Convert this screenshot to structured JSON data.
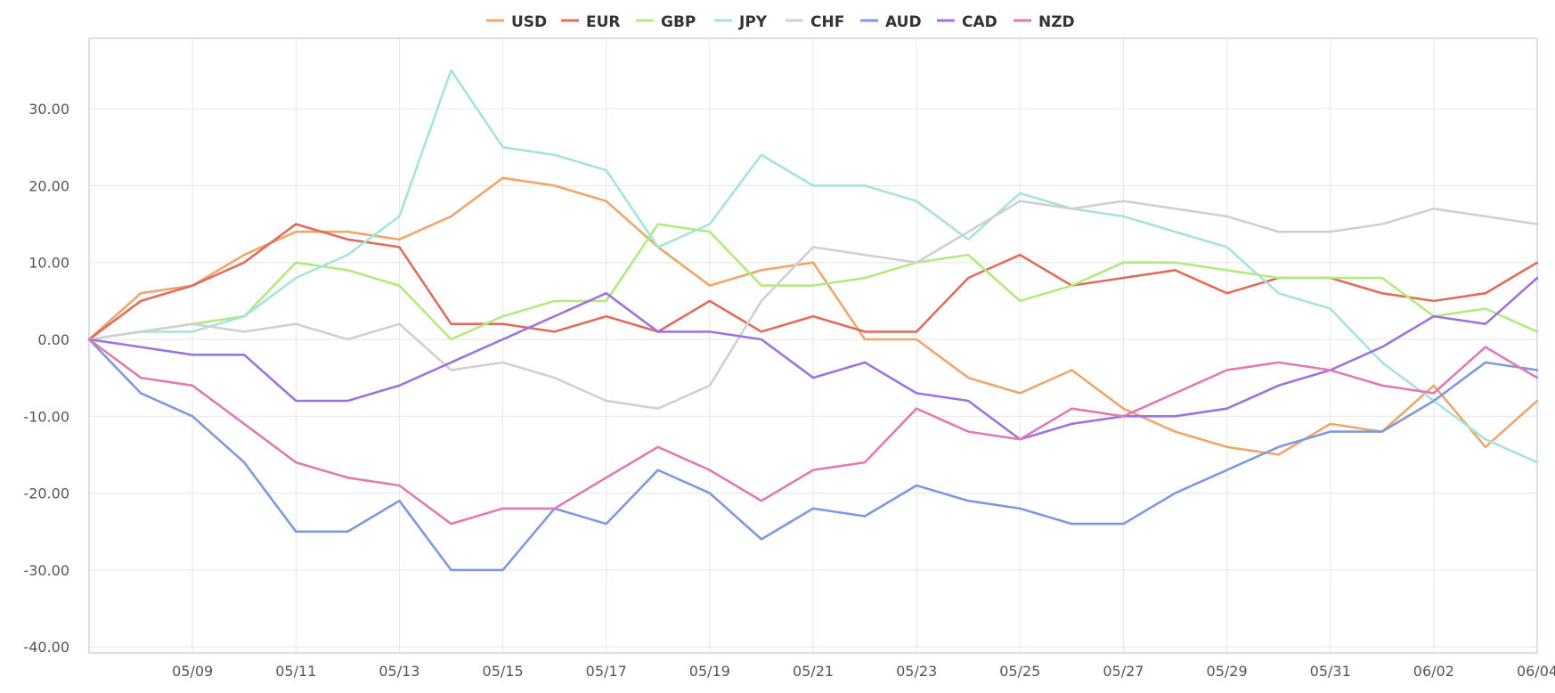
{
  "chart_data": {
    "type": "line",
    "title": "",
    "xlabel": "",
    "ylabel": "",
    "ylim": [
      -40,
      40
    ],
    "xlim": [
      "05/07",
      "06/04"
    ],
    "legend_position": "top-center",
    "grid": true,
    "yticks": [
      "-40.00",
      "-30.00",
      "-20.00",
      "-10.00",
      "0.00",
      "10.00",
      "20.00",
      "30.00"
    ],
    "xticks": [
      "05/09",
      "05/11",
      "05/13",
      "05/15",
      "05/17",
      "05/19",
      "05/21",
      "05/23",
      "05/25",
      "05/27",
      "05/29",
      "05/31",
      "06/02",
      "06/04"
    ],
    "x": [
      "05/07",
      "05/08",
      "05/09",
      "05/10",
      "05/11",
      "05/12",
      "05/13",
      "05/14",
      "05/15",
      "05/16",
      "05/17",
      "05/18",
      "05/19",
      "05/20",
      "05/21",
      "05/22",
      "05/23",
      "05/24",
      "05/25",
      "05/26",
      "05/27",
      "05/28",
      "05/29",
      "05/30",
      "05/31",
      "06/01",
      "06/02",
      "06/03",
      "06/04"
    ],
    "series": [
      {
        "name": "USD",
        "color": "#f0a56b",
        "values": [
          0,
          6,
          7,
          11,
          14,
          14,
          13,
          16,
          21,
          20,
          18,
          12,
          7,
          9,
          10,
          0,
          0,
          -5,
          -7,
          -4,
          -9,
          -12,
          -14,
          -15,
          -11,
          -12,
          -6,
          -14,
          -8
        ]
      },
      {
        "name": "EUR",
        "color": "#e06c5c",
        "values": [
          0,
          5,
          7,
          10,
          15,
          13,
          12,
          2,
          2,
          1,
          3,
          1,
          5,
          1,
          3,
          1,
          1,
          8,
          11,
          7,
          8,
          9,
          6,
          8,
          8,
          6,
          5,
          6,
          10
        ]
      },
      {
        "name": "GBP",
        "color": "#b2ea80",
        "values": [
          0,
          1,
          2,
          3,
          10,
          9,
          7,
          0,
          3,
          5,
          5,
          15,
          14,
          7,
          7,
          8,
          10,
          11,
          5,
          7,
          10,
          10,
          9,
          8,
          8,
          8,
          3,
          4,
          1
        ]
      },
      {
        "name": "JPY",
        "color": "#a8e3da",
        "values": [
          0,
          1,
          1,
          3,
          8,
          11,
          16,
          35,
          25,
          24,
          22,
          12,
          15,
          24,
          20,
          20,
          18,
          13,
          19,
          17,
          16,
          14,
          12,
          6,
          4,
          -3,
          -8,
          -13,
          -16
        ]
      },
      {
        "name": "CHF",
        "color": "#d0d0d0",
        "values": [
          0,
          1,
          2,
          1,
          2,
          0,
          2,
          -4,
          -3,
          -5,
          -8,
          -9,
          -6,
          5,
          12,
          11,
          10,
          14,
          18,
          17,
          18,
          17,
          16,
          14,
          14,
          15,
          17,
          16,
          15
        ]
      },
      {
        "name": "AUD",
        "color": "#7f99dd",
        "values": [
          0,
          -7,
          -10,
          -16,
          -25,
          -25,
          -21,
          -30,
          -30,
          -22,
          -24,
          -17,
          -20,
          -26,
          -22,
          -23,
          -19,
          -21,
          -22,
          -24,
          -24,
          -20,
          -17,
          -14,
          -12,
          -12,
          -8,
          -3,
          -4
        ]
      },
      {
        "name": "CAD",
        "color": "#9b74dd",
        "values": [
          0,
          -1,
          -2,
          -2,
          -8,
          -8,
          -6,
          -3,
          0,
          3,
          6,
          1,
          1,
          0,
          -5,
          -3,
          -7,
          -8,
          -13,
          -11,
          -10,
          -10,
          -9,
          -6,
          -4,
          -1,
          3,
          2,
          8
        ]
      },
      {
        "name": "NZD",
        "color": "#e07bb0",
        "values": [
          0,
          -5,
          -6,
          -11,
          -16,
          -18,
          -19,
          -24,
          -22,
          -22,
          -18,
          -14,
          -17,
          -21,
          -17,
          -16,
          -9,
          -12,
          -13,
          -9,
          -10,
          -7,
          -4,
          -3,
          -4,
          -6,
          -7,
          -1,
          -5
        ]
      }
    ]
  }
}
